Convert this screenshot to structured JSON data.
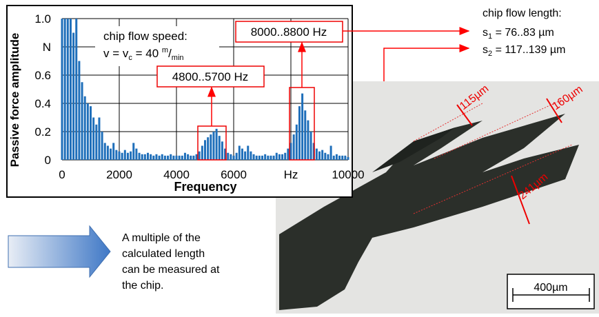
{
  "chart_data": {
    "type": "bar",
    "xlabel": "Frequency",
    "ylabel": "Passive force amplitude",
    "xlim": [
      0,
      10000
    ],
    "ylim": [
      0,
      1
    ],
    "xticks": [
      0,
      2000,
      4000,
      6000,
      {
        "value": 8000,
        "label": "Hz"
      },
      10000
    ],
    "yticks": [
      0,
      0.2,
      0.4,
      0.6,
      {
        "value": 0.8,
        "label": "N"
      },
      {
        "value": 1,
        "label": "1.0"
      }
    ],
    "grid": true,
    "color": "#1f6fba",
    "x": [
      0,
      100,
      200,
      300,
      400,
      500,
      600,
      700,
      800,
      900,
      1000,
      1100,
      1200,
      1300,
      1400,
      1500,
      1600,
      1700,
      1800,
      1900,
      2000,
      2100,
      2200,
      2300,
      2400,
      2500,
      2600,
      2700,
      2800,
      2900,
      3000,
      3100,
      3200,
      3300,
      3400,
      3500,
      3600,
      3700,
      3800,
      3900,
      4000,
      4100,
      4200,
      4300,
      4400,
      4500,
      4600,
      4700,
      4800,
      4900,
      5000,
      5100,
      5200,
      5300,
      5400,
      5500,
      5600,
      5700,
      5800,
      5900,
      6000,
      6100,
      6200,
      6300,
      6400,
      6500,
      6600,
      6700,
      6800,
      6900,
      7000,
      7100,
      7200,
      7300,
      7400,
      7500,
      7600,
      7700,
      7800,
      7900,
      8000,
      8100,
      8200,
      8300,
      8400,
      8500,
      8600,
      8700,
      8800,
      8900,
      9000,
      9100,
      9200,
      9300,
      9400,
      9500,
      9600,
      9700,
      9800,
      9900,
      10000
    ],
    "values": [
      1.0,
      1.0,
      1.0,
      1.0,
      0.9,
      1.0,
      0.7,
      0.55,
      0.45,
      0.4,
      0.38,
      0.3,
      0.25,
      0.3,
      0.2,
      0.12,
      0.1,
      0.08,
      0.12,
      0.07,
      0.06,
      0.05,
      0.07,
      0.05,
      0.06,
      0.12,
      0.08,
      0.05,
      0.04,
      0.04,
      0.05,
      0.04,
      0.03,
      0.04,
      0.03,
      0.04,
      0.03,
      0.03,
      0.04,
      0.03,
      0.03,
      0.03,
      0.03,
      0.05,
      0.04,
      0.03,
      0.03,
      0.04,
      0.06,
      0.1,
      0.14,
      0.16,
      0.18,
      0.2,
      0.22,
      0.17,
      0.13,
      0.08,
      0.05,
      0.04,
      0.03,
      0.05,
      0.1,
      0.08,
      0.06,
      0.1,
      0.06,
      0.04,
      0.03,
      0.03,
      0.03,
      0.04,
      0.03,
      0.03,
      0.03,
      0.05,
      0.04,
      0.04,
      0.05,
      0.08,
      0.12,
      0.18,
      0.25,
      0.38,
      0.47,
      0.35,
      0.28,
      0.2,
      0.12,
      0.08,
      0.06,
      0.07,
      0.05,
      0.04,
      0.1,
      0.03,
      0.04,
      0.03,
      0.03,
      0.03,
      0.02
    ]
  },
  "annotations": {
    "speed_title": "chip flow speed:",
    "speed_formula": [
      "v = v",
      "c",
      " = 40 ",
      "m",
      "/",
      "min"
    ],
    "range_low": "4800..5700 Hz",
    "range_high": "8000..8800 Hz",
    "length_title": "chip flow length:",
    "s1": [
      "s",
      "1",
      " = 76..83 µm"
    ],
    "s2": [
      "s",
      "2",
      " = 117..139 µm"
    ],
    "photo_labels": [
      "115µm",
      "160µm",
      "241µm"
    ],
    "scale_bar": "400µm",
    "conclusion": [
      "A multiple of the",
      "calculated length",
      "can be measured at",
      "the chip."
    ]
  }
}
